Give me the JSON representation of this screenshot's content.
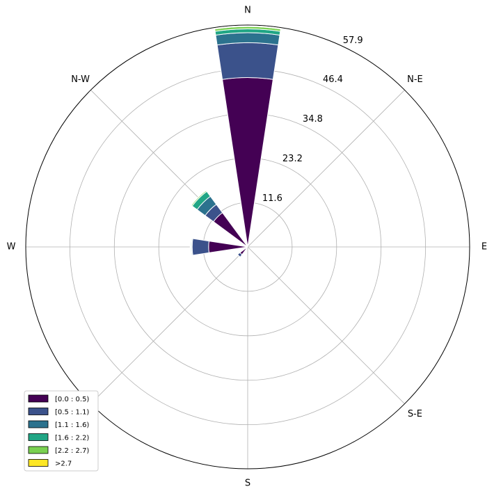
{
  "chart_data": {
    "type": "windrose",
    "x": [
      0,
      22.5,
      45,
      67.5,
      90,
      112.5,
      135,
      157.5,
      180,
      202.5,
      225,
      247.5,
      270,
      292.5,
      315,
      337.5
    ],
    "xticks": [
      0,
      45,
      90,
      135,
      180,
      225,
      270,
      315
    ],
    "xtick_labels": [
      "N",
      "N-E",
      "E",
      "S-E",
      "S",
      null,
      "W",
      "N-W"
    ],
    "ylim": [
      0,
      57.9
    ],
    "yticks": [
      11.6,
      23.2,
      34.8,
      46.4,
      57.9
    ],
    "grid": true,
    "legend": "lower left",
    "series": [
      {
        "name": "[0.0 : 0.5)",
        "color": "#440154",
        "values": [
          44.2,
          0,
          0,
          0,
          0,
          0,
          0,
          0,
          0,
          0,
          2.5,
          0,
          10.2,
          0,
          11.1,
          0
        ]
      },
      {
        "name": "[0.5 : 1.1)",
        "color": "#3b528b",
        "values": [
          9.1,
          0,
          0,
          0,
          0,
          0,
          0,
          0,
          0,
          0,
          0.8,
          0,
          4.3,
          0,
          2.7,
          0
        ]
      },
      {
        "name": "[1.1 : 1.6)",
        "color": "#2c728e",
        "values": [
          2.6,
          0,
          0,
          0,
          0,
          0,
          0,
          0,
          0,
          0,
          0,
          0,
          0.2,
          0,
          2.6,
          0
        ]
      },
      {
        "name": "[1.6 : 2.2)",
        "color": "#21a685",
        "values": [
          1.0,
          0,
          0,
          0,
          0,
          0,
          0,
          0,
          0,
          0,
          0,
          0,
          0.2,
          0,
          1.6,
          0
        ]
      },
      {
        "name": "[2.2 : 2.7)",
        "color": "#7ad151",
        "values": [
          0.6,
          0,
          0,
          0,
          0,
          0,
          0,
          0,
          0,
          0,
          0,
          0,
          0.1,
          0,
          0.3,
          0
        ]
      },
      {
        "name": ">2.7",
        "color": "#fde725",
        "values": [
          0.2,
          0,
          0,
          0,
          0,
          0,
          0,
          0,
          0,
          0,
          0,
          0,
          0,
          0,
          0,
          0
        ]
      }
    ]
  }
}
